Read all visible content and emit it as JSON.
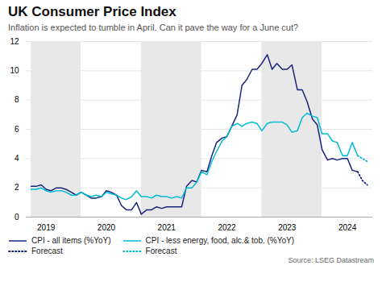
{
  "chart_data": {
    "type": "line",
    "title": "UK Consumer Price Index",
    "subtitle": "Inflation is expected to tumble in April. Can it pave the way for a June cut?",
    "annotations": [
      "Source: LSEG Datastream"
    ],
    "xlim": [
      2018.67,
      2024.42
    ],
    "xticks": [
      2019,
      2020,
      2021,
      2022,
      2023,
      2024
    ],
    "ylim": [
      0,
      12
    ],
    "yticks": [
      0,
      2,
      4,
      6,
      8,
      10,
      12
    ],
    "grid": true,
    "legend": "lower left",
    "bands": {
      "color": "#e8e8e8",
      "ranges": [
        [
          2018.75,
          2019.58
        ],
        [
          2020.58,
          2021.58
        ],
        [
          2022.58,
          2023.58
        ]
      ]
    },
    "series": [
      {
        "name": "CPI - all items (%YoY)",
        "color": "#1a237e",
        "line_style": "solid",
        "x": [
          2018.75,
          2018.83,
          2018.92,
          2019.0,
          2019.08,
          2019.17,
          2019.25,
          2019.33,
          2019.42,
          2019.5,
          2019.58,
          2019.67,
          2019.75,
          2019.83,
          2019.92,
          2020.0,
          2020.08,
          2020.17,
          2020.25,
          2020.33,
          2020.42,
          2020.5,
          2020.58,
          2020.67,
          2020.75,
          2020.83,
          2020.92,
          2021.0,
          2021.08,
          2021.17,
          2021.25,
          2021.33,
          2021.42,
          2021.5,
          2021.58,
          2021.67,
          2021.75,
          2021.83,
          2021.92,
          2022.0,
          2022.08,
          2022.17,
          2022.25,
          2022.33,
          2022.42,
          2022.5,
          2022.58,
          2022.67,
          2022.75,
          2022.83,
          2022.92,
          2023.0,
          2023.08,
          2023.17,
          2023.25,
          2023.33,
          2023.42,
          2023.5,
          2023.58,
          2023.67,
          2023.75,
          2023.83,
          2023.92,
          2024.0,
          2024.08,
          2024.17
        ],
        "values": [
          2.1,
          2.1,
          2.2,
          1.9,
          1.8,
          2.0,
          2.0,
          1.9,
          1.7,
          1.5,
          1.7,
          1.5,
          1.3,
          1.3,
          1.4,
          1.8,
          1.7,
          1.5,
          0.8,
          0.5,
          0.5,
          1.0,
          0.2,
          0.5,
          0.5,
          0.7,
          0.6,
          0.7,
          0.7,
          0.7,
          0.7,
          2.1,
          2.5,
          2.4,
          3.2,
          3.1,
          4.2,
          5.1,
          5.4,
          5.5,
          6.2,
          7.0,
          9.0,
          9.4,
          10.1,
          10.1,
          10.5,
          11.1,
          10.1,
          10.5,
          10.1,
          10.1,
          10.4,
          8.7,
          8.7,
          7.9,
          6.7,
          6.3,
          4.6,
          3.9,
          4.0,
          3.9,
          4.0,
          4.0,
          3.2,
          3.1
        ]
      },
      {
        "name": "Forecast",
        "color": "#1a237e",
        "line_style": "dotted",
        "x": [
          2024.17,
          2024.25,
          2024.33
        ],
        "values": [
          3.1,
          2.5,
          2.2
        ]
      },
      {
        "name": "CPI - less energy, food, alc.& tob. (%YoY)",
        "color": "#00bcd4",
        "line_style": "solid",
        "x": [
          2018.75,
          2018.83,
          2018.92,
          2019.0,
          2019.08,
          2019.17,
          2019.25,
          2019.33,
          2019.42,
          2019.5,
          2019.58,
          2019.67,
          2019.75,
          2019.83,
          2019.92,
          2020.0,
          2020.08,
          2020.17,
          2020.25,
          2020.33,
          2020.42,
          2020.5,
          2020.58,
          2020.67,
          2020.75,
          2020.83,
          2020.92,
          2021.0,
          2021.08,
          2021.17,
          2021.25,
          2021.33,
          2021.42,
          2021.5,
          2021.58,
          2021.67,
          2021.75,
          2021.83,
          2021.92,
          2022.0,
          2022.08,
          2022.17,
          2022.25,
          2022.33,
          2022.42,
          2022.5,
          2022.58,
          2022.67,
          2022.75,
          2022.83,
          2022.92,
          2023.0,
          2023.08,
          2023.17,
          2023.25,
          2023.33,
          2023.42,
          2023.5,
          2023.58,
          2023.67,
          2023.75,
          2023.83,
          2023.92,
          2024.0,
          2024.08,
          2024.17
        ],
        "values": [
          1.9,
          1.9,
          2.0,
          1.8,
          1.7,
          1.8,
          1.8,
          1.7,
          1.5,
          1.5,
          1.7,
          1.5,
          1.4,
          1.5,
          1.4,
          1.7,
          1.6,
          1.5,
          1.3,
          1.2,
          1.4,
          1.8,
          1.4,
          1.4,
          1.3,
          1.5,
          1.4,
          1.4,
          1.3,
          1.4,
          1.3,
          2.0,
          2.0,
          2.4,
          3.1,
          2.9,
          3.8,
          4.5,
          5.2,
          5.5,
          6.2,
          6.4,
          6.2,
          6.4,
          6.5,
          6.4,
          5.9,
          6.4,
          6.5,
          6.5,
          6.5,
          6.3,
          5.8,
          5.9,
          6.8,
          7.1,
          6.9,
          6.8,
          5.7,
          5.7,
          5.2,
          5.1,
          4.2,
          4.2,
          5.1,
          4.2
        ]
      },
      {
        "name": "Forecast",
        "color": "#00bcd4",
        "line_style": "dotted",
        "x": [
          2024.17,
          2024.25,
          2024.33
        ],
        "values": [
          4.2,
          4.0,
          3.8
        ]
      }
    ]
  }
}
